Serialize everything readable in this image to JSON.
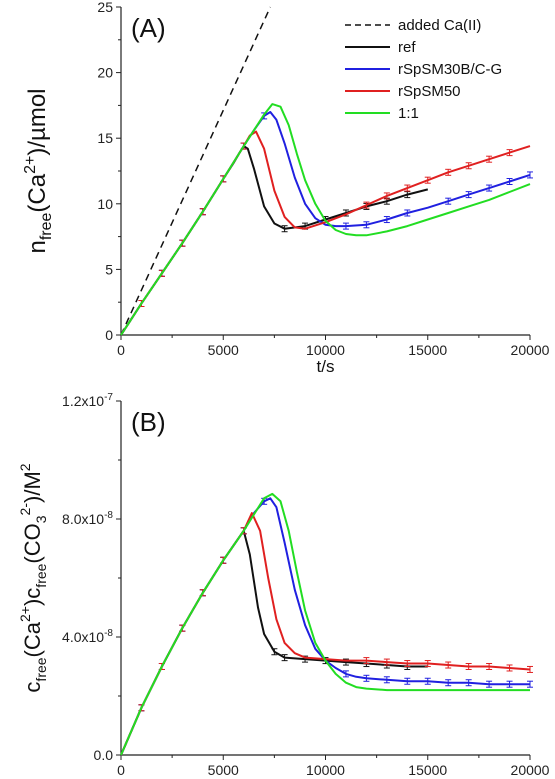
{
  "chart_data": [
    {
      "type": "line",
      "panel_label": "(A)",
      "xlabel": "t/s",
      "ylabel_main": "n",
      "ylabel_sub": "free",
      "ylabel_mid": "(Ca",
      "ylabel_sup": "2+",
      "ylabel_tail": ")/µmol",
      "xlim": [
        0,
        20000
      ],
      "ylim": [
        0,
        25
      ],
      "x_ticks": [
        {
          "v": 0,
          "label": "0"
        },
        {
          "v": 5000,
          "label": "5000"
        },
        {
          "v": 10000,
          "label": "10000"
        },
        {
          "v": 15000,
          "label": "15000"
        },
        {
          "v": 20000,
          "label": "20000"
        }
      ],
      "y_ticks": [
        {
          "v": 0,
          "label": "0"
        },
        {
          "v": 5,
          "label": "5"
        },
        {
          "v": 10,
          "label": "10"
        },
        {
          "v": 15,
          "label": "15"
        },
        {
          "v": 20,
          "label": "20"
        },
        {
          "v": 25,
          "label": "25"
        }
      ],
      "legend_position": "top-right",
      "series": [
        {
          "name": "added Ca(II)",
          "color": "#111111",
          "dashed": true,
          "x": [
            0,
            7300
          ],
          "y": [
            0,
            25
          ],
          "error_x": []
        },
        {
          "name": "ref",
          "color": "#111111",
          "dashed": false,
          "x": [
            0,
            1000,
            2000,
            3000,
            4000,
            5000,
            5500,
            5800,
            6000,
            6200,
            6500,
            7000,
            7500,
            8000,
            9000,
            10000,
            11000,
            12000,
            13000,
            14000,
            15000
          ],
          "y": [
            0,
            2.4,
            4.7,
            7.0,
            9.4,
            11.9,
            13.1,
            13.9,
            14.4,
            14.2,
            12.7,
            9.8,
            8.5,
            8.1,
            8.3,
            8.8,
            9.3,
            9.8,
            10.2,
            10.7,
            11.1
          ],
          "error_x": [
            1000,
            2000,
            3000,
            4000,
            5000,
            6000,
            8000,
            9000,
            10000,
            11000,
            12000,
            13000,
            14000
          ]
        },
        {
          "name": "rSpSM30B/C-G",
          "color": "#2020e0",
          "dashed": false,
          "x": [
            0,
            1000,
            2000,
            3000,
            4000,
            5000,
            6000,
            6500,
            7000,
            7300,
            7600,
            8000,
            8500,
            9000,
            9500,
            10000,
            10500,
            11000,
            12000,
            13000,
            14000,
            15000,
            16000,
            17000,
            18000,
            19000,
            20000
          ],
          "y": [
            0,
            2.4,
            4.7,
            7.0,
            9.4,
            11.9,
            14.4,
            15.6,
            16.7,
            17.0,
            16.4,
            14.6,
            12.0,
            10.0,
            8.9,
            8.4,
            8.3,
            8.3,
            8.4,
            8.8,
            9.3,
            9.7,
            10.2,
            10.7,
            11.2,
            11.7,
            12.2
          ],
          "error_x": [
            1000,
            2000,
            3000,
            4000,
            5000,
            6000,
            7000,
            11000,
            12000,
            13000,
            14000,
            16000,
            17000,
            18000,
            19000,
            20000
          ]
        },
        {
          "name": "rSpSM50",
          "color": "#e02020",
          "dashed": false,
          "x": [
            0,
            1000,
            2000,
            3000,
            4000,
            5000,
            6000,
            6300,
            6600,
            7000,
            7500,
            8000,
            8500,
            9000,
            10000,
            11000,
            12000,
            13000,
            14000,
            15000,
            16000,
            17000,
            18000,
            19000,
            20000
          ],
          "y": [
            0,
            2.4,
            4.7,
            7.0,
            9.4,
            11.9,
            14.4,
            15.2,
            15.5,
            14.2,
            11.0,
            9.0,
            8.2,
            8.1,
            8.6,
            9.2,
            9.9,
            10.6,
            11.2,
            11.8,
            12.4,
            12.9,
            13.4,
            13.9,
            14.4
          ],
          "error_x": [
            1000,
            2000,
            3000,
            4000,
            5000,
            6000,
            12000,
            13000,
            14000,
            15000,
            16000,
            17000,
            18000,
            19000
          ]
        },
        {
          "name": "1:1",
          "color": "#22dd22",
          "dashed": false,
          "x": [
            0,
            1000,
            2000,
            3000,
            4000,
            5000,
            6000,
            7000,
            7400,
            7800,
            8200,
            8600,
            9000,
            9500,
            10000,
            10500,
            11000,
            11500,
            12000,
            13000,
            14000,
            15000,
            16000,
            17000,
            18000,
            19000,
            20000
          ],
          "y": [
            0,
            2.4,
            4.7,
            7.0,
            9.4,
            11.9,
            14.4,
            16.8,
            17.6,
            17.4,
            16.0,
            13.8,
            11.8,
            10.0,
            8.7,
            8.0,
            7.7,
            7.6,
            7.6,
            7.9,
            8.3,
            8.8,
            9.3,
            9.8,
            10.3,
            10.9,
            11.5
          ],
          "error_x": []
        }
      ]
    },
    {
      "type": "line",
      "panel_label": "(B)",
      "xlabel": "t/s",
      "ylabel_main": "c",
      "ylabel_sub": "free",
      "ylabel_mid": "(Ca",
      "ylabel_sup": "2+",
      "ylabel_mid2": ")c",
      "ylabel_sub2": "free",
      "ylabel_mid3": "(CO",
      "ylabel_sub3": "3",
      "ylabel_sup3": "2-",
      "ylabel_tail": ")/M",
      "ylabel_sup4": "2",
      "xlim": [
        0,
        20000
      ],
      "ylim": [
        0,
        1.2e-07
      ],
      "x_ticks": [
        {
          "v": 0,
          "label": "0"
        },
        {
          "v": 5000,
          "label": "5000"
        },
        {
          "v": 10000,
          "label": "10000"
        },
        {
          "v": 15000,
          "label": "15000"
        },
        {
          "v": 20000,
          "label": "20000"
        }
      ],
      "y_ticks": [
        {
          "v": 0,
          "label": "0.0"
        },
        {
          "v": 4e-08,
          "label": "4.0x10",
          "exp": "-8"
        },
        {
          "v": 8e-08,
          "label": "8.0x10",
          "exp": "-8"
        },
        {
          "v": 1.2e-07,
          "label": "1.2x10",
          "exp": "-7"
        }
      ],
      "series": [
        {
          "name": "ref",
          "color": "#111111",
          "x": [
            0,
            1000,
            2000,
            3000,
            4000,
            5000,
            5500,
            6000,
            6300,
            6700,
            7000,
            7500,
            8000,
            9000,
            10000,
            11000,
            12000,
            13000,
            14000,
            15000
          ],
          "y": [
            0,
            1.6e-08,
            3e-08,
            4.3e-08,
            5.5e-08,
            6.6e-08,
            7.1e-08,
            7.6e-08,
            6.8e-08,
            5e-08,
            4.1e-08,
            3.5e-08,
            3.3e-08,
            3.25e-08,
            3.2e-08,
            3.15e-08,
            3.1e-08,
            3.05e-08,
            3e-08,
            3e-08
          ],
          "error_x": [
            1000,
            2000,
            3000,
            4000,
            5000,
            6000,
            7500,
            8000,
            9000,
            10000,
            11000,
            12000,
            13000,
            14000
          ]
        },
        {
          "name": "rSpSM30B/C-G",
          "color": "#2020e0",
          "x": [
            0,
            1000,
            2000,
            3000,
            4000,
            5000,
            6000,
            6500,
            7000,
            7300,
            7600,
            8000,
            8500,
            9000,
            9500,
            10000,
            10500,
            11000,
            11500,
            12000,
            13000,
            14000,
            15000,
            16000,
            17000,
            18000,
            19000,
            20000
          ],
          "y": [
            0,
            1.6e-08,
            3e-08,
            4.3e-08,
            5.5e-08,
            6.6e-08,
            7.6e-08,
            8.2e-08,
            8.6e-08,
            8.7e-08,
            8.4e-08,
            7.2e-08,
            5.6e-08,
            4.4e-08,
            3.6e-08,
            3.2e-08,
            2.95e-08,
            2.75e-08,
            2.65e-08,
            2.6e-08,
            2.55e-08,
            2.5e-08,
            2.5e-08,
            2.45e-08,
            2.45e-08,
            2.4e-08,
            2.4e-08,
            2.4e-08
          ],
          "error_x": [
            1000,
            2000,
            3000,
            4000,
            5000,
            6000,
            7000,
            11000,
            12000,
            13000,
            14000,
            15000,
            16000,
            17000,
            18000,
            19000,
            20000
          ]
        },
        {
          "name": "rSpSM50",
          "color": "#e02020",
          "x": [
            0,
            1000,
            2000,
            3000,
            4000,
            5000,
            6000,
            6400,
            6800,
            7200,
            7600,
            8000,
            8500,
            9000,
            10000,
            11000,
            12000,
            13000,
            14000,
            15000,
            16000,
            17000,
            18000,
            19000,
            20000
          ],
          "y": [
            0,
            1.6e-08,
            3e-08,
            4.3e-08,
            5.5e-08,
            6.6e-08,
            7.6e-08,
            8.2e-08,
            7.6e-08,
            6e-08,
            4.6e-08,
            3.8e-08,
            3.45e-08,
            3.3e-08,
            3.25e-08,
            3.2e-08,
            3.2e-08,
            3.15e-08,
            3.1e-08,
            3.1e-08,
            3.05e-08,
            3e-08,
            3e-08,
            2.95e-08,
            2.9e-08
          ],
          "error_x": [
            1000,
            2000,
            3000,
            4000,
            5000,
            6000,
            12000,
            13000,
            14000,
            15000,
            16000,
            17000,
            18000,
            19000,
            20000
          ]
        },
        {
          "name": "1:1",
          "color": "#22dd22",
          "x": [
            0,
            1000,
            2000,
            3000,
            4000,
            5000,
            6000,
            7000,
            7400,
            7800,
            8200,
            8600,
            9000,
            9500,
            10000,
            10500,
            11000,
            11500,
            12000,
            13000,
            14000,
            15000,
            16000,
            17000,
            18000,
            19000,
            20000
          ],
          "y": [
            0,
            1.6e-08,
            3e-08,
            4.3e-08,
            5.5e-08,
            6.6e-08,
            7.6e-08,
            8.7e-08,
            8.85e-08,
            8.6e-08,
            7.6e-08,
            6.2e-08,
            4.9e-08,
            3.8e-08,
            3.2e-08,
            2.75e-08,
            2.45e-08,
            2.3e-08,
            2.25e-08,
            2.2e-08,
            2.2e-08,
            2.2e-08,
            2.2e-08,
            2.2e-08,
            2.2e-08,
            2.2e-08,
            2.2e-08
          ],
          "error_x": []
        }
      ]
    }
  ]
}
